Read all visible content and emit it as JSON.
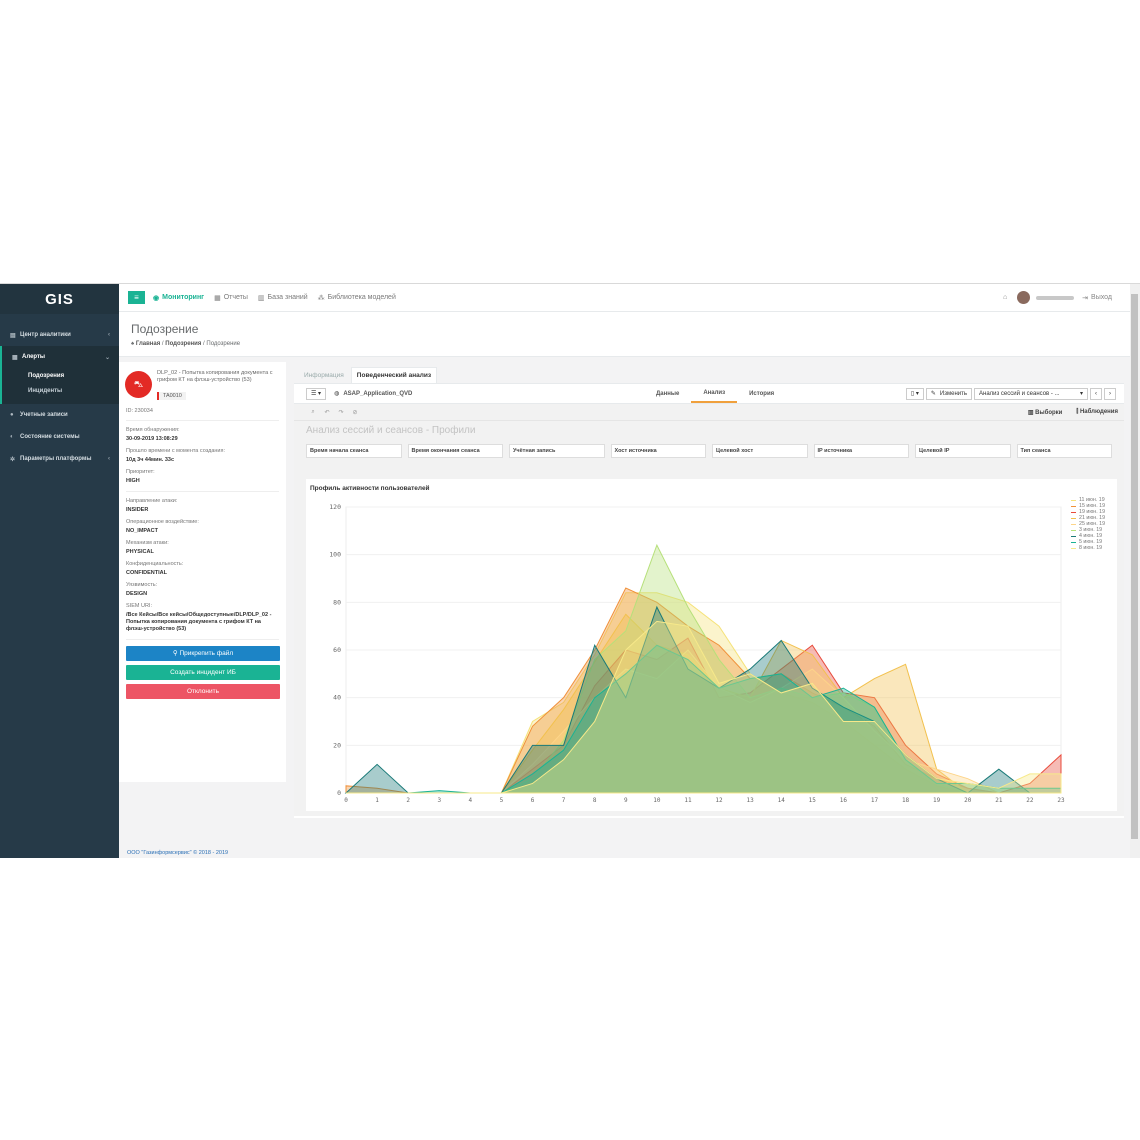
{
  "app": {
    "logo": "GIS"
  },
  "sidebar": {
    "items": [
      {
        "label": "Центр аналитики",
        "icon": "chart-icon"
      },
      {
        "label": "Алерты",
        "icon": "alert-icon"
      },
      {
        "label": "Учетные записи",
        "icon": "users-icon"
      },
      {
        "label": "Состояние системы",
        "icon": "gauge-icon"
      },
      {
        "label": "Параметры платформы",
        "icon": "cogs-icon"
      }
    ],
    "subitems": [
      "Подозрения",
      "Инциденты"
    ]
  },
  "topbar": {
    "links": [
      "Мониторинг",
      "Отчеты",
      "База знаний",
      "Библиотека моделей"
    ],
    "logout": "Выход"
  },
  "header": {
    "title": "Подозрение",
    "breadcrumb": [
      "Главная",
      "Подозрения",
      "Подозрение"
    ]
  },
  "alert": {
    "title": "DLP_02 - Попытка копирования документа с грифом КТ на флэш-устройство (53)",
    "tag": "TA0010",
    "id": "ID: 230034",
    "fields": [
      {
        "label": "Время обнаружения:",
        "value": "30-09-2019 13:08:29"
      },
      {
        "label": "Прошло времени с момента создания:",
        "value": "10д 3ч 44мин. 33с"
      },
      {
        "label": "Приоритет:",
        "value": "HIGH"
      },
      {
        "label": "Направление атаки:",
        "value": "INSIDER"
      },
      {
        "label": "Операционное воздействие:",
        "value": "NO_IMPACT"
      },
      {
        "label": "Механизм атаки:",
        "value": "PHYSICAL"
      },
      {
        "label": "Конфиденциальность:",
        "value": "CONFIDENTIAL"
      },
      {
        "label": "Уязвимость:",
        "value": "DESIGN"
      },
      {
        "label": "SIEM URI:",
        "value": "/Все Кейсы/Все кейсы/Общедоступные/DLP/DLP_02 - Попытка копирования документа с грифом КТ на флэш-устройство (53)"
      }
    ],
    "buttons": {
      "attach": "Прикрепить файл",
      "create": "Создать инцидент ИБ",
      "reject": "Отклонить"
    },
    "colors": {
      "attach": "#1c84c6",
      "create": "#1ab394",
      "reject": "#ed5565"
    }
  },
  "panel": {
    "tabs": [
      "Информация",
      "Поведенческий анализ"
    ],
    "app_name": "ASAP_Application_QVD",
    "qtabs": [
      "Данные",
      "Анализ",
      "История"
    ],
    "edit": "Изменить",
    "sheet_select": "Анализ сессий и сеансов - ...",
    "selections": "Выборки",
    "insights": "Наблюдения",
    "sheet_title": "Анализ сессий и сеансов - Профили",
    "filters": [
      "Время начала сеанса",
      "Время окончания сеанса",
      "Учётная запись",
      "Хост источника",
      "Целевой хост",
      "IP источника",
      "Целевой IP",
      "Тип сеанса"
    ]
  },
  "chart_data": {
    "type": "area",
    "title": "Профиль активности пользователей",
    "x": [
      0,
      1,
      2,
      3,
      4,
      5,
      6,
      7,
      8,
      9,
      10,
      11,
      12,
      13,
      14,
      15,
      16,
      17,
      18,
      19,
      20,
      21,
      22,
      23
    ],
    "ylim": [
      0,
      120
    ],
    "yticks": [
      0,
      20,
      40,
      60,
      80,
      100,
      120
    ],
    "series": [
      {
        "name": "11 июн. 19",
        "color": "#f5e27a",
        "values": [
          0,
          0,
          0,
          0,
          0,
          0,
          30,
          38,
          58,
          84,
          84,
          80,
          70,
          50,
          42,
          38,
          30,
          20,
          10,
          3,
          0,
          0,
          0,
          0
        ]
      },
      {
        "name": "15 июн. 19",
        "color": "#f0913a",
        "values": [
          3,
          2,
          0,
          0,
          0,
          0,
          28,
          40,
          60,
          86,
          80,
          70,
          62,
          48,
          50,
          42,
          36,
          28,
          12,
          6,
          2,
          0,
          0,
          0
        ]
      },
      {
        "name": "19 июн. 19",
        "color": "#e84b3c",
        "values": [
          0,
          0,
          0,
          0,
          0,
          0,
          10,
          20,
          45,
          60,
          56,
          65,
          40,
          42,
          52,
          62,
          42,
          40,
          20,
          8,
          2,
          0,
          4,
          16
        ]
      },
      {
        "name": "21 июн. 19",
        "color": "#f2c14e",
        "values": [
          0,
          0,
          0,
          0,
          0,
          0,
          18,
          35,
          55,
          75,
          62,
          58,
          44,
          40,
          64,
          58,
          40,
          48,
          54,
          10,
          0,
          0,
          0,
          0
        ]
      },
      {
        "name": "25 июн. 19",
        "color": "#fdd58a",
        "values": [
          0,
          0,
          0,
          0,
          0,
          0,
          12,
          26,
          40,
          52,
          48,
          60,
          44,
          38,
          44,
          52,
          40,
          26,
          14,
          10,
          6,
          0,
          0,
          0
        ]
      },
      {
        "name": "3 июн. 19",
        "color": "#b6e07a",
        "values": [
          0,
          0,
          0,
          0,
          0,
          0,
          6,
          22,
          56,
          68,
          104,
          78,
          56,
          40,
          44,
          40,
          42,
          36,
          14,
          4,
          0,
          0,
          0,
          0
        ]
      },
      {
        "name": "4 июн. 19",
        "color": "#1a7a78",
        "values": [
          0,
          12,
          0,
          0,
          0,
          0,
          20,
          20,
          62,
          40,
          78,
          52,
          44,
          52,
          64,
          44,
          36,
          30,
          16,
          6,
          0,
          10,
          0,
          0
        ]
      },
      {
        "name": "5 июн. 19",
        "color": "#1ab394",
        "values": [
          0,
          0,
          0,
          1,
          0,
          0,
          8,
          18,
          40,
          50,
          62,
          56,
          44,
          48,
          50,
          40,
          44,
          36,
          14,
          4,
          4,
          2,
          2,
          2
        ]
      },
      {
        "name": "8 июн. 19",
        "color": "#f7e98a",
        "values": [
          0,
          0,
          0,
          0,
          0,
          0,
          4,
          14,
          30,
          60,
          72,
          70,
          46,
          50,
          42,
          46,
          30,
          30,
          16,
          6,
          4,
          2,
          8,
          8
        ]
      }
    ]
  },
  "footer": "ООО \"Газинформсервис\" © 2018 - 2019"
}
